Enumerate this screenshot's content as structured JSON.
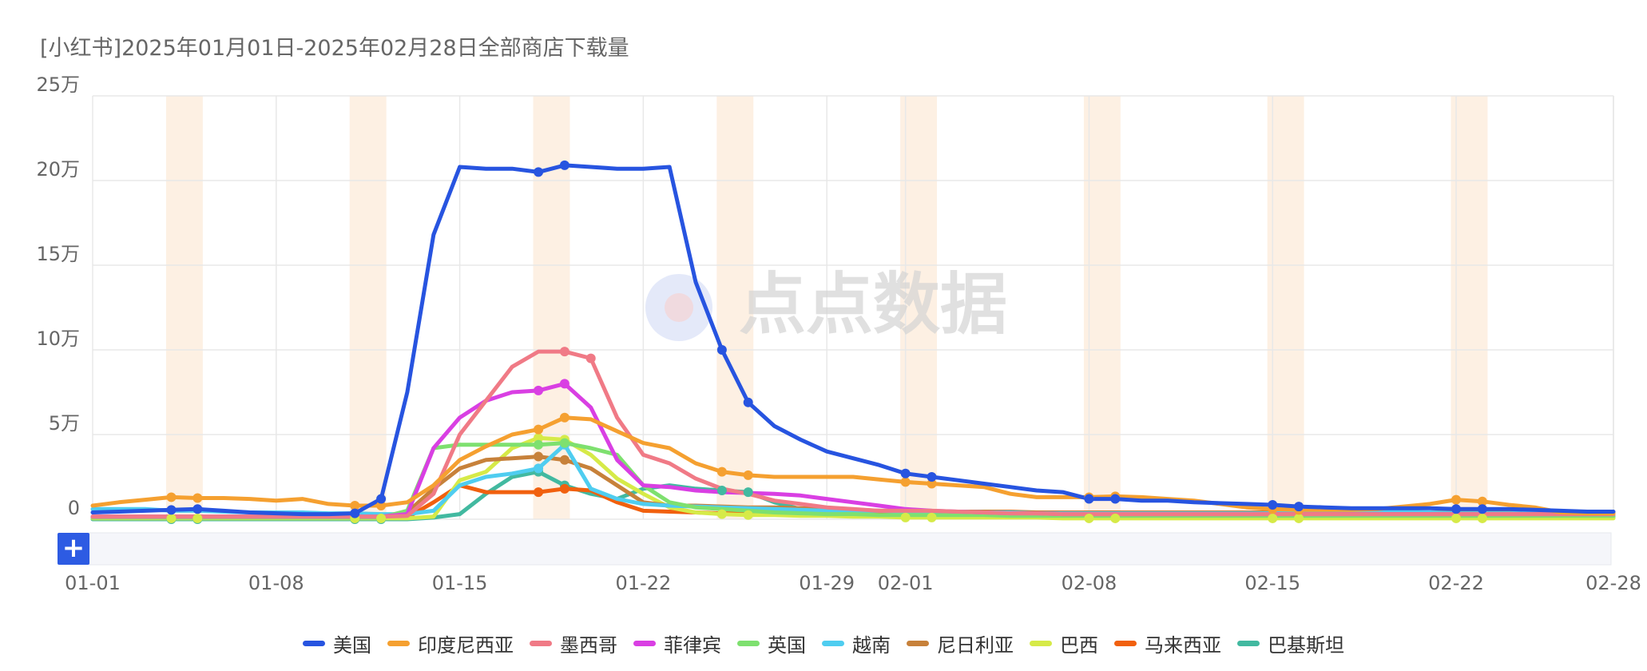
{
  "title": "[小红书]2025年01月01日-2025年02月28日全部商店下载量",
  "watermark": "点点数据",
  "zoom_button_label": "+",
  "colors": {
    "grid": "#e8e8e8",
    "weekend_band": "#fdf0e3",
    "axis_text": "#666666",
    "slider_bg": "#f5f6fa"
  },
  "chart_data": {
    "type": "line",
    "title": "[小红书]2025年01月01日-2025年02月28日全部商店下载量",
    "xlabel": "",
    "ylabel": "",
    "ylim": [
      0,
      250000
    ],
    "y_ticks": [
      {
        "value": 0,
        "label": "0"
      },
      {
        "value": 50000,
        "label": "5万"
      },
      {
        "value": 100000,
        "label": "10万"
      },
      {
        "value": 150000,
        "label": "15万"
      },
      {
        "value": 200000,
        "label": "20万"
      },
      {
        "value": 250000,
        "label": "25万"
      }
    ],
    "x_ticks": [
      "01-01",
      "01-08",
      "01-15",
      "01-22",
      "01-29",
      "02-01",
      "02-08",
      "02-15",
      "02-22",
      "02-28"
    ],
    "x_tick_index": [
      0,
      7,
      14,
      21,
      28,
      31,
      38,
      45,
      52,
      58
    ],
    "weekend_band_index": [
      3.5,
      10.5,
      17.5,
      24.5,
      31.5,
      38.5,
      45.5,
      52.5
    ],
    "grid": true,
    "legend_position": "bottom",
    "x": [
      "01-01",
      "01-02",
      "01-03",
      "01-04",
      "01-05",
      "01-06",
      "01-07",
      "01-08",
      "01-09",
      "01-10",
      "01-11",
      "01-12",
      "01-13",
      "01-14",
      "01-15",
      "01-16",
      "01-17",
      "01-18",
      "01-19",
      "01-20",
      "01-21",
      "01-22",
      "01-23",
      "01-24",
      "01-25",
      "01-26",
      "01-27",
      "01-28",
      "01-29",
      "01-30",
      "01-31",
      "02-01",
      "02-02",
      "02-03",
      "02-04",
      "02-05",
      "02-06",
      "02-07",
      "02-08",
      "02-09",
      "02-10",
      "02-11",
      "02-12",
      "02-13",
      "02-14",
      "02-15",
      "02-16",
      "02-17",
      "02-18",
      "02-19",
      "02-20",
      "02-21",
      "02-22",
      "02-23",
      "02-24",
      "02-25",
      "02-26",
      "02-27",
      "02-28"
    ],
    "series": [
      {
        "name": "美国",
        "color": "#2754e0",
        "markers": [
          3,
          4,
          10,
          11,
          17,
          18,
          24,
          25,
          31,
          32,
          38,
          39,
          45,
          46,
          52,
          53
        ],
        "values": [
          4000,
          4500,
          5000,
          5500,
          6000,
          5000,
          4000,
          3500,
          3000,
          3000,
          3500,
          12000,
          75000,
          168000,
          208000,
          207000,
          207000,
          205000,
          209000,
          208000,
          207000,
          207000,
          208000,
          140000,
          100000,
          69000,
          55000,
          47000,
          40000,
          36000,
          32000,
          27000,
          25000,
          23000,
          21000,
          19000,
          17000,
          16000,
          12000,
          12000,
          11000,
          11000,
          10000,
          9500,
          9000,
          8500,
          7500,
          7000,
          6500,
          6500,
          6500,
          6500,
          6000,
          6000,
          6000,
          5500,
          5000,
          4500,
          4500
        ]
      },
      {
        "name": "印度尼西亚",
        "color": "#f5a030",
        "markers": [
          3,
          4,
          10,
          11,
          17,
          18,
          24,
          25,
          31,
          32,
          38,
          39,
          45,
          46,
          52,
          53
        ],
        "values": [
          8000,
          10000,
          11500,
          13000,
          12500,
          12500,
          12000,
          11000,
          12000,
          9000,
          8000,
          8000,
          10000,
          20000,
          35000,
          43000,
          50000,
          53000,
          60000,
          59000,
          52000,
          45000,
          42000,
          33000,
          28000,
          26000,
          25000,
          25000,
          25000,
          25000,
          23500,
          22000,
          21000,
          20000,
          19000,
          15000,
          13000,
          13000,
          13000,
          13500,
          13000,
          12000,
          11000,
          9000,
          7000,
          6000,
          5500,
          5500,
          5500,
          6000,
          7500,
          9000,
          11500,
          10500,
          8500,
          7000,
          4000,
          3500,
          3500
        ]
      },
      {
        "name": "墨西哥",
        "color": "#f07a86",
        "markers": [
          18,
          19
        ],
        "values": [
          1500,
          1500,
          1500,
          1500,
          1500,
          1500,
          1500,
          1500,
          1500,
          1500,
          1500,
          1500,
          2000,
          15000,
          50000,
          70000,
          90000,
          99000,
          99000,
          95000,
          60000,
          38000,
          33000,
          24000,
          18000,
          15000,
          11000,
          9000,
          7000,
          6000,
          5000,
          5000,
          5000,
          4500,
          4000,
          3500,
          3500,
          3000,
          3000,
          3000,
          3000,
          3000,
          3000,
          3000,
          3000,
          3000,
          3000,
          3000,
          3000,
          3000,
          3000,
          3000,
          3000,
          3000,
          3000,
          3000,
          3000,
          3000,
          3000
        ]
      },
      {
        "name": "菲律宾",
        "color": "#d93fe3",
        "markers": [
          17,
          18
        ],
        "values": [
          1500,
          1500,
          1500,
          1500,
          1500,
          1500,
          1500,
          1500,
          1500,
          1500,
          1500,
          1500,
          3000,
          42000,
          60000,
          70000,
          75000,
          76000,
          80000,
          66000,
          35000,
          20000,
          19000,
          17000,
          16000,
          15500,
          15000,
          14000,
          12000,
          10000,
          8000,
          6000,
          5000,
          4500,
          4000,
          3500,
          3500,
          3000,
          3000,
          3000,
          3000,
          3000,
          3000,
          3000,
          3000,
          3000,
          3000,
          3000,
          3000,
          3000,
          3000,
          3000,
          3000,
          3000,
          3000,
          3000,
          3000,
          3000,
          3000
        ]
      },
      {
        "name": "英国",
        "color": "#7ee06f",
        "markers": [
          17,
          18
        ],
        "values": [
          1000,
          1000,
          1000,
          1000,
          1000,
          1000,
          1000,
          1000,
          1000,
          1000,
          1000,
          1000,
          5000,
          42000,
          44000,
          44000,
          44000,
          44000,
          45000,
          42000,
          38000,
          20000,
          10000,
          7000,
          6000,
          5000,
          4000,
          3500,
          3000,
          3000,
          2500,
          2500,
          2500,
          2500,
          2500,
          2000,
          2000,
          2000,
          2000,
          2000,
          2000,
          2000,
          2000,
          2000,
          2000,
          2000,
          2000,
          2000,
          2000,
          2000,
          2000,
          2000,
          2000,
          2000,
          2000,
          2000,
          2000,
          2000,
          2000
        ]
      },
      {
        "name": "越南",
        "color": "#4fcdf0",
        "markers": [
          17,
          18
        ],
        "values": [
          6000,
          6000,
          6000,
          5000,
          5000,
          4500,
          4000,
          4000,
          4000,
          3500,
          3500,
          3000,
          3000,
          5000,
          20000,
          25000,
          27000,
          30000,
          44000,
          18000,
          12000,
          9000,
          8000,
          7500,
          7000,
          6500,
          6000,
          5500,
          5000,
          5000,
          5000,
          4500,
          4500,
          4500,
          4000,
          4000,
          3500,
          3500,
          3500,
          3500,
          3500,
          3500,
          3500,
          3500,
          3500,
          3500,
          3500,
          4000,
          5000,
          5000,
          4500,
          4000,
          3500,
          3500,
          3500,
          3500,
          3500,
          3500,
          3500
        ]
      },
      {
        "name": "尼日利亚",
        "color": "#c7813a",
        "markers": [
          17,
          18
        ],
        "values": [
          1500,
          1500,
          1500,
          1500,
          1500,
          1500,
          1500,
          1500,
          1500,
          1500,
          1500,
          1500,
          4000,
          18000,
          30000,
          35000,
          36000,
          37000,
          35000,
          30000,
          20000,
          10000,
          8000,
          8000,
          7500,
          7000,
          7000,
          6500,
          6000,
          5500,
          5000,
          5000,
          4500,
          4500,
          4500,
          4500,
          4000,
          4000,
          4000,
          4000,
          4000,
          4000,
          4000,
          4000,
          4000,
          4000,
          4000,
          4000,
          4000,
          4000,
          4000,
          4000,
          4000,
          4000,
          4000,
          4000,
          4000,
          4000,
          4000
        ]
      },
      {
        "name": "巴西",
        "color": "#d6ea48",
        "markers": [
          3,
          4,
          10,
          11,
          17,
          18,
          24,
          25,
          31,
          32,
          38,
          39,
          45,
          46,
          52,
          53
        ],
        "values": [
          500,
          500,
          500,
          500,
          500,
          500,
          500,
          500,
          500,
          500,
          500,
          500,
          500,
          1500,
          23000,
          28000,
          42000,
          48000,
          47000,
          38000,
          24000,
          15000,
          7000,
          4000,
          3000,
          2500,
          2500,
          2000,
          2000,
          1500,
          1500,
          1000,
          1000,
          1000,
          1000,
          1000,
          1000,
          500,
          500,
          500,
          500,
          500,
          500,
          500,
          500,
          500,
          500,
          500,
          500,
          500,
          500,
          500,
          500,
          500,
          500,
          500,
          500,
          500,
          500
        ]
      },
      {
        "name": "马来西亚",
        "color": "#f1600e",
        "markers": [
          17,
          18
        ],
        "values": [
          1000,
          1000,
          1000,
          1000,
          1000,
          1000,
          1000,
          1000,
          1000,
          1000,
          1000,
          1000,
          1000,
          10000,
          20000,
          16000,
          16000,
          16000,
          18000,
          17000,
          10000,
          5000,
          4500,
          4000,
          3500,
          3500,
          3500,
          3500,
          3500,
          3500,
          3500,
          3500,
          3500,
          3500,
          3500,
          3500,
          3500,
          3500,
          3500,
          3500,
          3500,
          3500,
          3500,
          3500,
          3500,
          3500,
          3500,
          3500,
          3500,
          3500,
          3500,
          3500,
          3500,
          3500,
          3500,
          3500,
          3500,
          3500,
          3500
        ]
      },
      {
        "name": "巴基斯坦",
        "color": "#42b9a0",
        "markers": [
          3,
          4,
          10,
          11,
          17,
          18,
          24,
          25
        ],
        "values": [
          0,
          0,
          0,
          0,
          0,
          0,
          0,
          0,
          0,
          0,
          0,
          0,
          0,
          1000,
          3000,
          15000,
          25000,
          28000,
          20000,
          15000,
          12000,
          18000,
          20000,
          18000,
          17000,
          16000,
          10000,
          6000,
          4000,
          3000,
          2000,
          1500,
          1500,
          1500,
          1500,
          1500,
          1500,
          1500,
          1500,
          1500,
          1500,
          1500,
          1500,
          1500,
          1500,
          1500,
          1500,
          1500,
          1500,
          1500,
          1500,
          1500,
          1500,
          1500,
          1500,
          1500,
          1500,
          1500,
          1500
        ]
      }
    ]
  }
}
